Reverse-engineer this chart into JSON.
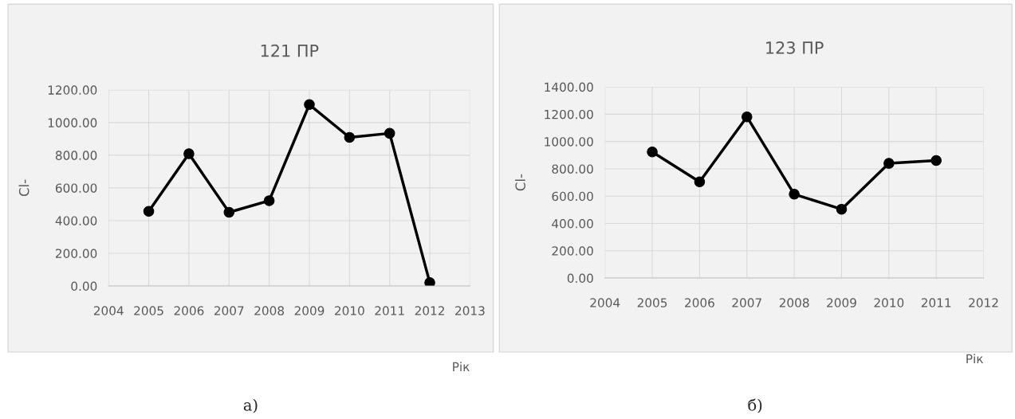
{
  "chart_data": [
    {
      "type": "line",
      "title": "121 ПР",
      "xlabel": "Рік",
      "ylabel": "Cl-",
      "annotations": [
        "а)"
      ],
      "x": [
        2005,
        2006,
        2007,
        2008,
        2009,
        2010,
        2011,
        2012
      ],
      "series": [
        {
          "color": "#000000",
          "values": [
            457,
            809,
            451,
            522,
            1110,
            909,
            934,
            20
          ]
        }
      ],
      "xlim": [
        2004,
        2013
      ],
      "xticks": [
        2004,
        2005,
        2006,
        2007,
        2008,
        2009,
        2010,
        2011,
        2012,
        2013
      ],
      "ylim": [
        0,
        1200
      ],
      "yticks": [
        {
          "value": 0,
          "label": "0.00"
        },
        {
          "value": 200,
          "label": "200.00"
        },
        {
          "value": 400,
          "label": "400.00"
        },
        {
          "value": 600,
          "label": "600.00"
        },
        {
          "value": 800,
          "label": "800.00"
        },
        {
          "value": 1000,
          "label": "1000.00"
        },
        {
          "value": 1200,
          "label": "1200.00"
        }
      ],
      "grid": true,
      "marker": "circle",
      "line_style": "solid",
      "legend": false
    },
    {
      "type": "line",
      "title": "123 ПР",
      "xlabel": "Рік",
      "ylabel": "Cl-",
      "annotations": [
        "б)"
      ],
      "x": [
        2005,
        2006,
        2007,
        2008,
        2009,
        2010,
        2011
      ],
      "series": [
        {
          "color": "#000000",
          "values": [
            924,
            705,
            1181,
            614,
            504,
            840,
            861
          ]
        }
      ],
      "xlim": [
        2004,
        2012
      ],
      "xticks": [
        2004,
        2005,
        2006,
        2007,
        2008,
        2009,
        2010,
        2011,
        2012
      ],
      "ylim": [
        0,
        1400
      ],
      "yticks": [
        {
          "value": 0,
          "label": "0.00"
        },
        {
          "value": 200,
          "label": "200.00"
        },
        {
          "value": 400,
          "label": "400.00"
        },
        {
          "value": 600,
          "label": "600.00"
        },
        {
          "value": 800,
          "label": "800.00"
        },
        {
          "value": 1000,
          "label": "1000.00"
        },
        {
          "value": 1200,
          "label": "1200.00"
        },
        {
          "value": 1400,
          "label": "1400.00"
        }
      ],
      "grid": true,
      "marker": "circle",
      "line_style": "solid",
      "legend": false
    }
  ]
}
